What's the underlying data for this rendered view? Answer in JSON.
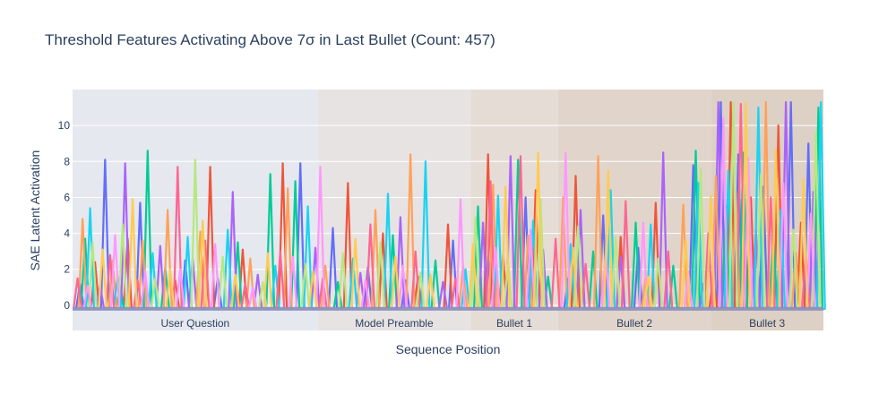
{
  "chart_data": {
    "type": "line",
    "title": "Threshold Features Activating Above 7σ in Last Bullet (Count: 457)",
    "xlabel": "Sequence Position",
    "ylabel": "SAE Latent Activation",
    "xlim": [
      0,
      300
    ],
    "ylim": [
      -1.4,
      12
    ],
    "y_ticks": [
      0,
      2,
      4,
      6,
      8,
      10
    ],
    "grid": true,
    "legend": "none",
    "regions": [
      {
        "label": "User Question",
        "start": 0,
        "end": 98,
        "color": "#e5e8ee"
      },
      {
        "label": "Model Preamble",
        "start": 98,
        "end": 159,
        "color": "#e8e3e3"
      },
      {
        "label": "Bullet 1",
        "start": 159,
        "end": 194,
        "color": "#e6dcd6"
      },
      {
        "label": "Bullet 2",
        "start": 194,
        "end": 255,
        "color": "#e1d5cb"
      },
      {
        "label": "Bullet 3",
        "start": 255,
        "end": 300,
        "color": "#ddd0c4"
      }
    ],
    "colors": [
      "#636efa",
      "#ef553b",
      "#00cc96",
      "#ab63fa",
      "#ffa15a",
      "#19d3f3",
      "#ff6692",
      "#b6e880",
      "#ff97ff",
      "#fecb52"
    ],
    "series": [
      {
        "color": "#636efa",
        "spikes": [
          [
            3,
            1.2
          ],
          [
            13,
            8.1
          ],
          [
            27,
            5.7
          ],
          [
            45,
            2.5
          ],
          [
            58,
            1.5
          ],
          [
            91,
            7.9
          ],
          [
            104,
            4.3
          ],
          [
            118,
            2.1
          ],
          [
            133,
            1.4
          ],
          [
            152,
            3.6
          ],
          [
            166,
            2.7
          ],
          [
            181,
            6.0
          ],
          [
            198,
            1.5
          ],
          [
            212,
            5.0
          ],
          [
            226,
            3.2
          ],
          [
            248,
            7.8
          ],
          [
            259,
            11.3
          ],
          [
            266,
            8.4
          ],
          [
            276,
            6.6
          ],
          [
            287,
            11.3
          ],
          [
            294,
            9.0
          ]
        ]
      },
      {
        "color": "#ef553b",
        "spikes": [
          [
            9,
            2.4
          ],
          [
            22,
            3.7
          ],
          [
            41,
            1.4
          ],
          [
            55,
            7.7
          ],
          [
            68,
            3.1
          ],
          [
            84,
            7.9
          ],
          [
            110,
            6.8
          ],
          [
            124,
            4.0
          ],
          [
            138,
            1.6
          ],
          [
            150,
            4.5
          ],
          [
            166,
            8.4
          ],
          [
            172,
            2.8
          ],
          [
            185,
            6.4
          ],
          [
            201,
            7.2
          ],
          [
            219,
            3.8
          ],
          [
            233,
            5.7
          ],
          [
            256,
            1.6
          ],
          [
            263,
            11.3
          ],
          [
            271,
            6.0
          ],
          [
            282,
            10.0
          ],
          [
            291,
            4.6
          ]
        ]
      },
      {
        "color": "#00cc96",
        "spikes": [
          [
            5,
            3.7
          ],
          [
            19,
            1.1
          ],
          [
            30,
            8.6
          ],
          [
            37,
            2.1
          ],
          [
            66,
            3.5
          ],
          [
            79,
            7.3
          ],
          [
            89,
            6.9
          ],
          [
            106,
            1.3
          ],
          [
            128,
            3.9
          ],
          [
            145,
            2.5
          ],
          [
            162,
            5.5
          ],
          [
            178,
            8.1
          ],
          [
            190,
            1.6
          ],
          [
            208,
            3.0
          ],
          [
            225,
            4.6
          ],
          [
            240,
            2.2
          ],
          [
            249,
            8.6
          ],
          [
            261,
            5.5
          ],
          [
            268,
            8.5
          ],
          [
            280,
            3.7
          ],
          [
            298,
            11.0
          ]
        ]
      },
      {
        "color": "#ab63fa",
        "spikes": [
          [
            11,
            1.1
          ],
          [
            21,
            7.9
          ],
          [
            35,
            3.3
          ],
          [
            48,
            2.6
          ],
          [
            64,
            6.3
          ],
          [
            74,
            1.7
          ],
          [
            97,
            3.2
          ],
          [
            115,
            1.8
          ],
          [
            131,
            4.9
          ],
          [
            148,
            1.3
          ],
          [
            164,
            4.6
          ],
          [
            175,
            8.3
          ],
          [
            188,
            3.1
          ],
          [
            203,
            5.3
          ],
          [
            219,
            2.7
          ],
          [
            236,
            8.5
          ],
          [
            252,
            1.2
          ],
          [
            258,
            11.3
          ],
          [
            273,
            4.2
          ],
          [
            285,
            11.3
          ],
          [
            296,
            6.3
          ]
        ]
      },
      {
        "color": "#ffa15a",
        "spikes": [
          [
            4,
            4.8
          ],
          [
            16,
            2.5
          ],
          [
            28,
            3.6
          ],
          [
            38,
            5.3
          ],
          [
            51,
            4.1
          ],
          [
            71,
            2.6
          ],
          [
            86,
            6.5
          ],
          [
            101,
            2.2
          ],
          [
            121,
            5.3
          ],
          [
            135,
            8.4
          ],
          [
            156,
            2.2
          ],
          [
            168,
            6.7
          ],
          [
            182,
            3.9
          ],
          [
            196,
            6.0
          ],
          [
            210,
            8.3
          ],
          [
            229,
            1.6
          ],
          [
            244,
            5.6
          ],
          [
            257,
            7.2
          ],
          [
            265,
            6.3
          ],
          [
            277,
            11.3
          ],
          [
            289,
            2.9
          ]
        ]
      },
      {
        "color": "#19d3f3",
        "spikes": [
          [
            7,
            5.4
          ],
          [
            18,
            1.6
          ],
          [
            32,
            2.9
          ],
          [
            46,
            3.8
          ],
          [
            62,
            4.2
          ],
          [
            81,
            2.2
          ],
          [
            94,
            5.5
          ],
          [
            112,
            2.6
          ],
          [
            126,
            6.2
          ],
          [
            141,
            8.0
          ],
          [
            157,
            2.0
          ],
          [
            170,
            6.1
          ],
          [
            184,
            4.7
          ],
          [
            199,
            3.4
          ],
          [
            215,
            6.4
          ],
          [
            231,
            4.5
          ],
          [
            250,
            6.8
          ],
          [
            262,
            7.5
          ],
          [
            274,
            11.0
          ],
          [
            283,
            5.3
          ],
          [
            299,
            11.3
          ]
        ]
      },
      {
        "color": "#ff6692",
        "spikes": [
          [
            2,
            1.5
          ],
          [
            15,
            2.8
          ],
          [
            26,
            1.4
          ],
          [
            42,
            7.7
          ],
          [
            53,
            3.6
          ],
          [
            69,
            1.2
          ],
          [
            83,
            3.0
          ],
          [
            100,
            1.5
          ],
          [
            119,
            4.5
          ],
          [
            137,
            3.0
          ],
          [
            153,
            1.5
          ],
          [
            167,
            6.9
          ],
          [
            179,
            8.3
          ],
          [
            193,
            3.7
          ],
          [
            205,
            2.3
          ],
          [
            221,
            5.8
          ],
          [
            238,
            3.0
          ],
          [
            254,
            4.0
          ],
          [
            267,
            11.2
          ],
          [
            279,
            6.0
          ],
          [
            293,
            2.8
          ]
        ]
      },
      {
        "color": "#b6e880",
        "spikes": [
          [
            8,
            3.5
          ],
          [
            20,
            4.5
          ],
          [
            33,
            1.5
          ],
          [
            49,
            8.1
          ],
          [
            60,
            2.7
          ],
          [
            76,
            1.3
          ],
          [
            93,
            2.3
          ],
          [
            108,
            2.9
          ],
          [
            123,
            3.5
          ],
          [
            139,
            1.8
          ],
          [
            161,
            4.9
          ],
          [
            174,
            2.4
          ],
          [
            187,
            5.9
          ],
          [
            202,
            4.4
          ],
          [
            217,
            3.8
          ],
          [
            234,
            2.6
          ],
          [
            251,
            7.6
          ],
          [
            264,
            11.3
          ],
          [
            275,
            7.3
          ],
          [
            288,
            4.2
          ],
          [
            297,
            9.6
          ]
        ]
      },
      {
        "color": "#ff97ff",
        "spikes": [
          [
            6,
            1.1
          ],
          [
            17,
            3.9
          ],
          [
            29,
            1.9
          ],
          [
            43,
            2.0
          ],
          [
            57,
            3.4
          ],
          [
            72,
            1.0
          ],
          [
            88,
            2.7
          ],
          [
            99,
            7.7
          ],
          [
            117,
            1.4
          ],
          [
            132,
            2.2
          ],
          [
            155,
            5.9
          ],
          [
            169,
            3.2
          ],
          [
            183,
            4.2
          ],
          [
            197,
            8.5
          ],
          [
            213,
            2.9
          ],
          [
            228,
            4.6
          ],
          [
            246,
            1.9
          ],
          [
            260,
            10.4
          ],
          [
            270,
            8.2
          ],
          [
            284,
            6.8
          ],
          [
            295,
            5.1
          ]
        ]
      },
      {
        "color": "#fecb52",
        "spikes": [
          [
            12,
            3.1
          ],
          [
            24,
            5.9
          ],
          [
            39,
            2.0
          ],
          [
            52,
            4.7
          ],
          [
            65,
            1.7
          ],
          [
            78,
            2.9
          ],
          [
            96,
            1.9
          ],
          [
            113,
            3.7
          ],
          [
            129,
            2.7
          ],
          [
            143,
            1.7
          ],
          [
            160,
            3.4
          ],
          [
            173,
            6.6
          ],
          [
            186,
            8.5
          ],
          [
            200,
            3.2
          ],
          [
            214,
            7.5
          ],
          [
            230,
            1.6
          ],
          [
            245,
            3.6
          ],
          [
            255,
            6.1
          ],
          [
            269,
            11.3
          ],
          [
            281,
            8.7
          ],
          [
            292,
            7.0
          ]
        ]
      }
    ]
  }
}
